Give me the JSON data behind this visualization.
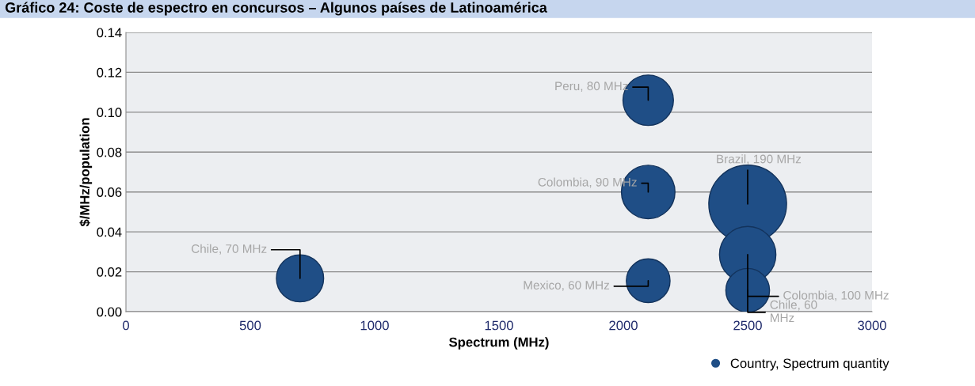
{
  "chart_data": {
    "type": "bubble",
    "title": "Gráfico 24: Coste de espectro en concursos – Algunos países de Latinoamérica",
    "xlabel": "Spectrum (MHz)",
    "ylabel": "$/MHz/population",
    "series": [
      {
        "name": "Country, Spectrum quantity",
        "color": "#1f4e86",
        "x": [
          700,
          2100,
          2100,
          2100,
          2500,
          2500,
          2500
        ],
        "values": [
          0.0167,
          0.106,
          0.06,
          0.0155,
          0.054,
          0.0286,
          0.0107
        ],
        "sizes": [
          0.368,
          0.421,
          0.474,
          0.316,
          1,
          0.526,
          0.316
        ]
      }
    ],
    "annotations": [
      {
        "text": "Chile, 70 MHz",
        "x": 700,
        "y": 0.0167
      },
      {
        "text": "Peru, 80 MHz",
        "x": 2100,
        "y": 0.106
      },
      {
        "text": "Colombia, 90 MHz",
        "x": 2100,
        "y": 0.06
      },
      {
        "text": "Mexico, 60 MHz",
        "x": 2100,
        "y": 0.0155
      },
      {
        "text": "Brazil, 190 MHz",
        "x": 2500,
        "y": 0.054
      },
      {
        "text": "Colombia, 100 MHz",
        "x": 2500,
        "y": 0.0286
      },
      {
        "text": "Chile, 60\nMHz",
        "x": 2500,
        "y": 0.0107
      }
    ],
    "xlim": [
      0,
      3000
    ],
    "xticks": [
      0,
      500,
      1000,
      1500,
      2000,
      2500,
      3000
    ],
    "ylim": [
      0,
      0.14
    ],
    "yticks": [
      {
        "value": 0,
        "label": "0.00"
      },
      {
        "value": 0.02,
        "label": "0.02"
      },
      {
        "value": 0.04,
        "label": "0.04"
      },
      {
        "value": 0.06,
        "label": "0.06"
      },
      {
        "value": 0.08,
        "label": "0.08"
      },
      {
        "value": 0.1,
        "label": "0.10"
      },
      {
        "value": 0.12,
        "label": "0.12"
      },
      {
        "value": 0.14,
        "label": "0.14"
      }
    ],
    "grid": "y",
    "legend": "bottom right",
    "marker": "circle"
  }
}
